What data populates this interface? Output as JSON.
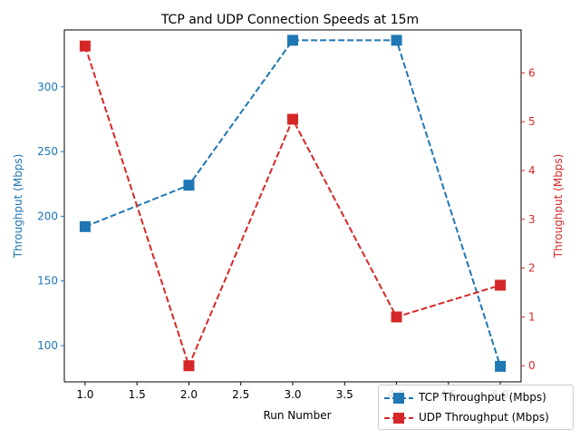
{
  "chart_data": {
    "type": "line",
    "title": "TCP and UDP Connection Speeds at 15m",
    "xlabel": "Run Number",
    "ylabel_left": "Throughput (Mbps)",
    "ylabel_right": "Throughput (Mbps)",
    "x": [
      1,
      2,
      3,
      4,
      5
    ],
    "xlim": [
      0.8,
      5.2
    ],
    "xticks": [
      "1.0",
      "1.5",
      "2.0",
      "2.5",
      "3.0",
      "3.5",
      "4.0",
      "4.5",
      "5.0"
    ],
    "left_axis": {
      "ylim": [
        72,
        344
      ],
      "ticks": [
        100,
        150,
        200,
        250,
        300
      ],
      "color": "#1f77b4"
    },
    "right_axis": {
      "ylim": [
        -0.33,
        6.88
      ],
      "ticks": [
        0,
        1,
        2,
        3,
        4,
        5,
        6
      ],
      "color": "#d62728"
    },
    "series": [
      {
        "name": "TCP Throughput (Mbps)",
        "axis": "left",
        "color": "#1f77b4",
        "values": [
          192,
          224,
          336,
          336,
          84
        ]
      },
      {
        "name": "UDP Throughput (Mbps)",
        "axis": "right",
        "color": "#d62728",
        "values": [
          6.55,
          0.0,
          5.05,
          1.0,
          1.65
        ]
      }
    ],
    "grid": false,
    "legend_position": "bottom-right"
  }
}
